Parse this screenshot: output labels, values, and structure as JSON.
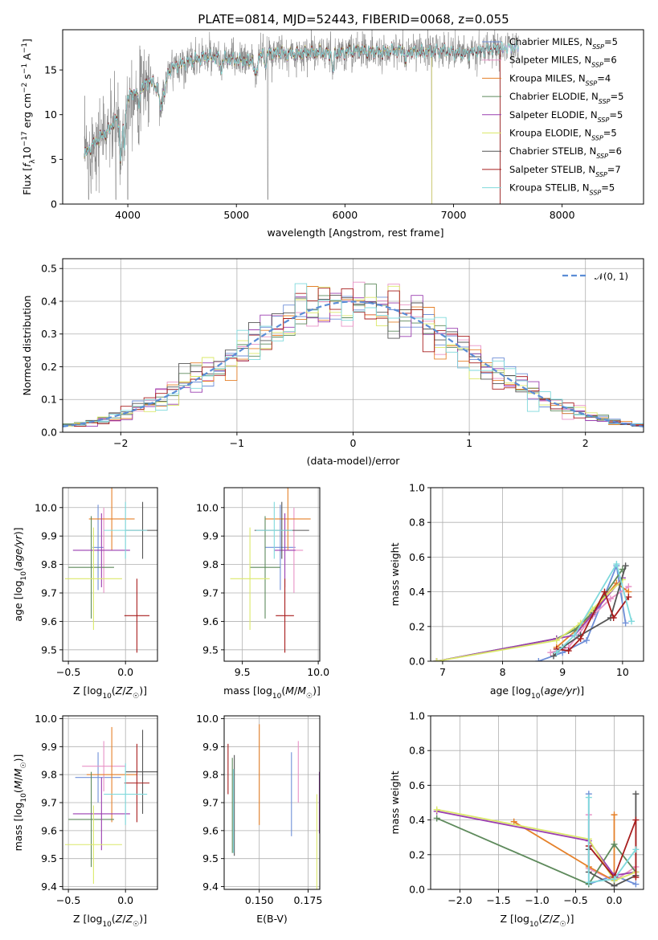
{
  "figure": {
    "title": "PLATE=0814, MJD=52443, FIBERID=0068, z=0.055"
  },
  "colors": {
    "Chabrier MILES": "#6f8fd8",
    "Salpeter MILES": "#e892c6",
    "Kroupa MILES": "#e5812a",
    "Chabrier ELODIE": "#5e8a5c",
    "Salpeter ELODIE": "#9a3fb0",
    "Kroupa ELODIE": "#dbe86a",
    "Chabrier STELIB": "#555555",
    "Salpeter STELIB": "#a81e1e",
    "Kroupa STELIB": "#7fd9dc",
    "data": "#808080"
  },
  "chart_data": [
    {
      "id": "spectrum",
      "type": "line",
      "title": "PLATE=0814, MJD=52443, FIBERID=0068, z=0.055",
      "xlabel": "wavelength [Angstrom, rest frame]",
      "ylabel": "Flux [f_λ 10^-17 erg cm^-2 s^-1 A^-1]",
      "xlim": [
        3400,
        8750
      ],
      "ylim": [
        0,
        19.5
      ],
      "xticks": [
        4000,
        5000,
        6000,
        7000,
        8000
      ],
      "yticks": [
        0,
        5,
        10,
        15
      ],
      "grid": false,
      "legend": "right",
      "legend_entries": [
        "Chabrier MILES, N_SSP=5",
        "Salpeter MILES, N_SSP=6",
        "Kroupa MILES, N_SSP=4",
        "Chabrier ELODIE, N_SSP=5",
        "Salpeter ELODIE, N_SSP=5",
        "Kroupa ELODIE, N_SSP=5",
        "Chabrier STELIB, N_SSP=6",
        "Salpeter STELIB, N_SSP=7",
        "Kroupa STELIB, N_SSP=5"
      ],
      "data_series": {
        "name": "data",
        "x": [
          3600,
          3700,
          3800,
          3900,
          3950,
          4000,
          4100,
          4200,
          4300,
          4400,
          4500,
          4700,
          4900,
          5100,
          5300,
          5500,
          5700,
          5900,
          6100,
          6300,
          6500,
          6700,
          6900,
          7100,
          7300,
          7500,
          7600
        ],
        "y": [
          5.5,
          7.0,
          8.0,
          9.5,
          8.0,
          12.0,
          12.8,
          13.8,
          12.8,
          15.2,
          15.7,
          16.5,
          16.3,
          16.0,
          17.0,
          16.8,
          17.0,
          16.8,
          17.2,
          17.0,
          17.2,
          17.0,
          17.2,
          16.8,
          17.3,
          17.5,
          17.6
        ]
      },
      "model_range": {
        "Chabrier MILES": [
          3600,
          7600
        ],
        "Salpeter MILES": [
          3600,
          7600
        ],
        "Kroupa MILES": [
          3600,
          7600
        ],
        "Chabrier ELODIE": [
          3600,
          6800
        ],
        "Salpeter ELODIE": [
          3600,
          6800
        ],
        "Kroupa ELODIE": [
          3600,
          6800
        ],
        "Chabrier STELIB": [
          3600,
          7430
        ],
        "Salpeter STELIB": [
          3600,
          7430
        ],
        "Kroupa STELIB": [
          3600,
          7600
        ]
      }
    },
    {
      "id": "residuals",
      "type": "step-histogram",
      "xlabel": "(data-model)/error",
      "ylabel": "Normed distribution",
      "xlim": [
        -2.5,
        2.5
      ],
      "ylim": [
        0,
        0.53
      ],
      "xticks": [
        -2,
        -1,
        0,
        1,
        2
      ],
      "yticks": [
        0.0,
        0.1,
        0.2,
        0.3,
        0.4,
        0.5
      ],
      "grid": true,
      "legend": "top-right",
      "reference_curve": {
        "name": "N(0,1)",
        "label": "𝒩(0, 1)",
        "mean": 0,
        "sigma": 1
      },
      "bins": {
        "start": -2.5,
        "width": 0.1,
        "count": 50
      }
    },
    {
      "id": "z-age",
      "type": "errorbar",
      "xlabel": "Z [log10(Z/Z☉)]",
      "ylabel": "age  [log10(age/yr)]",
      "xlim": [
        -0.55,
        0.28
      ],
      "ylim": [
        9.46,
        10.07
      ],
      "xticks": [
        -0.5,
        0.0
      ],
      "yticks": [
        9.5,
        9.6,
        9.7,
        9.8,
        9.9,
        10.0
      ],
      "grid": true,
      "points": [
        {
          "series": "Chabrier MILES",
          "x": -0.24,
          "y": 9.86,
          "xerr": 0.05,
          "yerr": 0.15
        },
        {
          "series": "Salpeter MILES",
          "x": -0.19,
          "y": 9.85,
          "xerr": 0.05,
          "yerr": 0.15
        },
        {
          "series": "Kroupa MILES",
          "x": -0.12,
          "y": 9.96,
          "xerr": 0.2,
          "yerr": 0.11
        },
        {
          "series": "Chabrier ELODIE",
          "x": -0.3,
          "y": 9.79,
          "xerr": 0.2,
          "yerr": 0.18
        },
        {
          "series": "Salpeter ELODIE",
          "x": -0.21,
          "y": 9.85,
          "xerr": 0.25,
          "yerr": 0.13
        },
        {
          "series": "Kroupa ELODIE",
          "x": -0.28,
          "y": 9.75,
          "xerr": 0.25,
          "yerr": 0.18
        },
        {
          "series": "Chabrier STELIB",
          "x": 0.15,
          "y": 9.92,
          "xerr": 0.15,
          "yerr": 0.1
        },
        {
          "series": "Salpeter STELIB",
          "x": 0.1,
          "y": 9.62,
          "xerr": 0.11,
          "yerr": 0.13
        },
        {
          "series": "Kroupa STELIB",
          "x": 0.0,
          "y": 9.92,
          "xerr": 0.19,
          "yerr": 0.1
        }
      ]
    },
    {
      "id": "mass-age",
      "type": "errorbar",
      "xlabel": "mass [log10(M/M☉)]",
      "ylabel": "",
      "xlim": [
        9.38,
        10.01
      ],
      "ylim": [
        9.46,
        10.07
      ],
      "xticks": [
        9.5,
        10.0
      ],
      "yticks": [
        9.5,
        9.6,
        9.7,
        9.8,
        9.9,
        10.0
      ],
      "grid": true,
      "points": [
        {
          "series": "Chabrier MILES",
          "x": 9.75,
          "y": 9.86,
          "xerr": 0.1,
          "yerr": 0.15
        },
        {
          "series": "Salpeter MILES",
          "x": 9.84,
          "y": 9.85,
          "xerr": 0.06,
          "yerr": 0.15
        },
        {
          "series": "Kroupa MILES",
          "x": 9.8,
          "y": 9.96,
          "xerr": 0.15,
          "yerr": 0.11
        },
        {
          "series": "Chabrier ELODIE",
          "x": 9.65,
          "y": 9.79,
          "xerr": 0.1,
          "yerr": 0.18
        },
        {
          "series": "Salpeter ELODIE",
          "x": 9.78,
          "y": 9.85,
          "xerr": 0.07,
          "yerr": 0.13
        },
        {
          "series": "Kroupa ELODIE",
          "x": 9.55,
          "y": 9.75,
          "xerr": 0.13,
          "yerr": 0.18
        },
        {
          "series": "Chabrier STELIB",
          "x": 9.76,
          "y": 9.92,
          "xerr": 0.18,
          "yerr": 0.1
        },
        {
          "series": "Salpeter STELIB",
          "x": 9.78,
          "y": 9.62,
          "xerr": 0.06,
          "yerr": 0.13
        },
        {
          "series": "Kroupa STELIB",
          "x": 9.71,
          "y": 9.92,
          "xerr": 0.12,
          "yerr": 0.1
        }
      ]
    },
    {
      "id": "age-weight",
      "type": "line",
      "xlabel": "age  [log10(age/yr)]",
      "ylabel": "mass weight",
      "xlim": [
        6.8,
        10.35
      ],
      "ylim": [
        0,
        1.0
      ],
      "xticks": [
        7,
        8,
        9,
        10
      ],
      "yticks": [
        0.0,
        0.2,
        0.4,
        0.6,
        0.8,
        1.0
      ],
      "grid": true,
      "series": [
        {
          "name": "Chabrier MILES",
          "x": [
            8.6,
            9.0,
            9.4,
            9.9,
            10.05
          ],
          "y": [
            0.0,
            0.05,
            0.12,
            0.55,
            0.22
          ]
        },
        {
          "name": "Salpeter MILES",
          "x": [
            8.8,
            9.1,
            9.5,
            9.8,
            10.1
          ],
          "y": [
            0.05,
            0.08,
            0.26,
            0.36,
            0.43
          ]
        },
        {
          "name": "Kroupa MILES",
          "x": [
            8.9,
            9.3,
            9.9,
            10.1
          ],
          "y": [
            0.08,
            0.2,
            0.45,
            0.4
          ]
        },
        {
          "name": "Chabrier ELODIE",
          "x": [
            6.9,
            8.9,
            9.2,
            9.5,
            10.0
          ],
          "y": [
            0.0,
            0.13,
            0.18,
            0.28,
            0.53
          ]
        },
        {
          "name": "Salpeter ELODIE",
          "x": [
            6.9,
            8.9,
            9.2,
            9.5,
            10.0
          ],
          "y": [
            0.0,
            0.13,
            0.15,
            0.27,
            0.48
          ]
        },
        {
          "name": "Kroupa ELODIE",
          "x": [
            6.9,
            8.9,
            9.3,
            9.5,
            10.0
          ],
          "y": [
            0.0,
            0.12,
            0.22,
            0.3,
            0.47
          ]
        },
        {
          "name": "Chabrier STELIB",
          "x": [
            8.85,
            9.0,
            9.3,
            9.8,
            10.05
          ],
          "y": [
            0.03,
            0.08,
            0.15,
            0.25,
            0.55
          ]
        },
        {
          "name": "Salpeter STELIB",
          "x": [
            8.9,
            9.1,
            9.3,
            9.7,
            9.85,
            10.1
          ],
          "y": [
            0.07,
            0.06,
            0.13,
            0.4,
            0.25,
            0.37
          ]
        },
        {
          "name": "Kroupa STELIB",
          "x": [
            8.9,
            9.2,
            9.9,
            10.15
          ],
          "y": [
            0.05,
            0.15,
            0.56,
            0.23
          ]
        }
      ]
    },
    {
      "id": "z-mass",
      "type": "errorbar",
      "xlabel": "Z [log10(Z/Z☉)]",
      "ylabel": "mass [log10(M/M☉)]",
      "xlim": [
        -0.55,
        0.28
      ],
      "ylim": [
        9.39,
        10.01
      ],
      "xticks": [
        -0.5,
        0.0
      ],
      "yticks": [
        9.4,
        9.5,
        9.6,
        9.7,
        9.8,
        9.9,
        10.0
      ],
      "grid": true,
      "points": [
        {
          "series": "Chabrier MILES",
          "x": -0.24,
          "y": 9.79,
          "xerr": 0.2,
          "yerr": 0.09
        },
        {
          "series": "Salpeter MILES",
          "x": -0.19,
          "y": 9.83,
          "xerr": 0.19,
          "yerr": 0.09
        },
        {
          "series": "Kroupa MILES",
          "x": -0.12,
          "y": 9.8,
          "xerr": 0.22,
          "yerr": 0.17
        },
        {
          "series": "Chabrier ELODIE",
          "x": -0.3,
          "y": 9.64,
          "xerr": 0.2,
          "yerr": 0.17
        },
        {
          "series": "Salpeter ELODIE",
          "x": -0.21,
          "y": 9.66,
          "xerr": 0.25,
          "yerr": 0.13
        },
        {
          "series": "Kroupa ELODIE",
          "x": -0.28,
          "y": 9.55,
          "xerr": 0.25,
          "yerr": 0.14
        },
        {
          "series": "Chabrier STELIB",
          "x": 0.15,
          "y": 9.81,
          "xerr": 0.15,
          "yerr": 0.15
        },
        {
          "series": "Salpeter STELIB",
          "x": 0.1,
          "y": 9.77,
          "xerr": 0.11,
          "yerr": 0.14
        },
        {
          "series": "Kroupa STELIB",
          "x": 0.0,
          "y": 9.73,
          "xerr": 0.19,
          "yerr": 0.11
        }
      ]
    },
    {
      "id": "ebv-mass",
      "type": "errorbar",
      "xlabel": "E(B-V)",
      "ylabel": "",
      "xlim": [
        0.132,
        0.181
      ],
      "ylim": [
        9.39,
        10.01
      ],
      "xticks": [
        0.15,
        0.175
      ],
      "xtick_labels": [
        "0.150",
        "0.175"
      ],
      "yticks": [
        9.4,
        9.5,
        9.6,
        9.7,
        9.8,
        9.9,
        10.0
      ],
      "grid": true,
      "points": [
        {
          "series": "Chabrier MILES",
          "x": 0.1665,
          "y": 9.73,
          "yerr": 0.15
        },
        {
          "series": "Salpeter MILES",
          "x": 0.17,
          "y": 9.81,
          "yerr": 0.11
        },
        {
          "series": "Kroupa MILES",
          "x": 0.15,
          "y": 9.8,
          "yerr": 0.18
        },
        {
          "series": "Chabrier ELODIE",
          "x": 0.1362,
          "y": 9.69,
          "yerr": 0.17
        },
        {
          "series": "Salpeter ELODIE",
          "x": 0.1808,
          "y": 9.7,
          "yerr": 0.11
        },
        {
          "series": "Kroupa ELODIE",
          "x": 0.1795,
          "y": 9.56,
          "yerr": 0.17
        },
        {
          "series": "Chabrier STELIB",
          "x": 0.1372,
          "y": 9.69,
          "yerr": 0.18
        },
        {
          "series": "Salpeter STELIB",
          "x": 0.134,
          "y": 9.82,
          "yerr": 0.09
        },
        {
          "series": "Kroupa STELIB",
          "x": 0.1368,
          "y": 9.67,
          "yerr": 0.15
        }
      ]
    },
    {
      "id": "z-weight",
      "type": "line",
      "xlabel": "Z [log10(Z/Z☉)]",
      "ylabel": "mass weight",
      "xlim": [
        -2.38,
        0.38
      ],
      "ylim": [
        0,
        1.0
      ],
      "xticks": [
        -2.0,
        -1.5,
        -1.0,
        -0.5,
        0.0
      ],
      "yticks": [
        0.0,
        0.2,
        0.4,
        0.6,
        0.8,
        1.0
      ],
      "grid": true,
      "series": [
        {
          "name": "Chabrier MILES",
          "x": [
            -0.33,
            -0.33,
            0.0,
            0.28
          ],
          "y": [
            0.55,
            0.03,
            0.08,
            0.03
          ]
        },
        {
          "name": "Salpeter MILES",
          "x": [
            -0.33,
            -0.33,
            0.0,
            0.28
          ],
          "y": [
            0.43,
            0.12,
            0.05,
            0.13
          ]
        },
        {
          "name": "Kroupa MILES",
          "x": [
            -1.3,
            -0.33,
            0.0,
            0.0
          ],
          "y": [
            0.39,
            0.13,
            0.05,
            0.43
          ]
        },
        {
          "name": "Chabrier ELODIE",
          "x": [
            -2.3,
            -0.33,
            0.0,
            0.28
          ],
          "y": [
            0.41,
            0.03,
            0.26,
            0.1
          ]
        },
        {
          "name": "Salpeter ELODIE",
          "x": [
            -2.3,
            -0.33,
            0.0,
            0.28
          ],
          "y": [
            0.45,
            0.28,
            0.08,
            0.1
          ]
        },
        {
          "name": "Kroupa ELODIE",
          "x": [
            -2.3,
            -0.33,
            0.0,
            0.28
          ],
          "y": [
            0.46,
            0.29,
            0.05,
            0.1
          ]
        },
        {
          "name": "Chabrier STELIB",
          "x": [
            -0.33,
            -0.33,
            0.0,
            0.28,
            0.28
          ],
          "y": [
            0.23,
            0.1,
            0.02,
            0.08,
            0.55
          ]
        },
        {
          "name": "Salpeter STELIB",
          "x": [
            -0.33,
            0.0,
            0.28,
            0.28
          ],
          "y": [
            0.25,
            0.07,
            0.4,
            0.07
          ]
        },
        {
          "name": "Kroupa STELIB",
          "x": [
            -0.33,
            -0.33,
            0.0,
            0.28
          ],
          "y": [
            0.53,
            0.04,
            0.06,
            0.23
          ]
        }
      ]
    }
  ]
}
